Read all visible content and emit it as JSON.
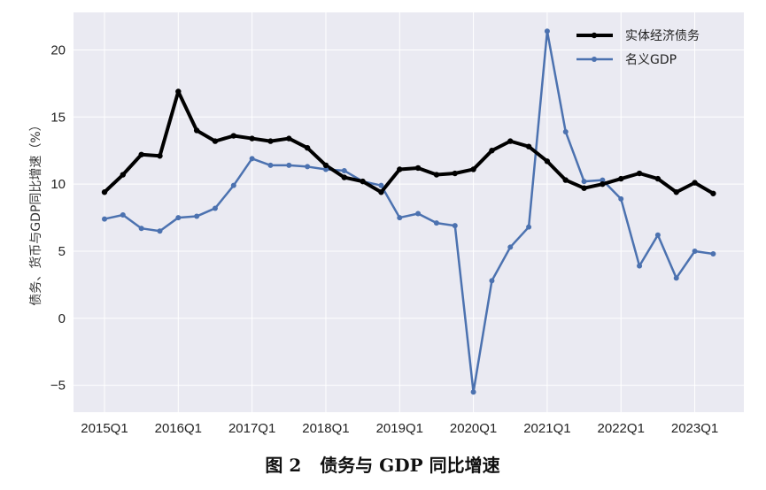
{
  "chart_data": {
    "type": "line",
    "title": "",
    "caption": "图 2   债务与 GDP 同比增速",
    "ylabel": "债务、货币与GDP同比增速（%）",
    "xlabel": "",
    "ylim": [
      -7,
      22.8
    ],
    "yticks": [
      -5,
      0,
      5,
      10,
      15,
      20
    ],
    "ytick_labels": [
      "−5",
      "0",
      "5",
      "10",
      "15",
      "20"
    ],
    "xtick_labels": [
      "2015Q1",
      "2016Q1",
      "2017Q1",
      "2018Q1",
      "2019Q1",
      "2020Q1",
      "2021Q1",
      "2022Q1",
      "2023Q1"
    ],
    "grid": true,
    "legend_position": "top-right",
    "x": [
      "2015Q1",
      "2015Q2",
      "2015Q3",
      "2015Q4",
      "2016Q1",
      "2016Q2",
      "2016Q3",
      "2016Q4",
      "2017Q1",
      "2017Q2",
      "2017Q3",
      "2017Q4",
      "2018Q1",
      "2018Q2",
      "2018Q3",
      "2018Q4",
      "2019Q1",
      "2019Q2",
      "2019Q3",
      "2019Q4",
      "2020Q1",
      "2020Q2",
      "2020Q3",
      "2020Q4",
      "2021Q1",
      "2021Q2",
      "2021Q3",
      "2021Q4",
      "2022Q1",
      "2022Q2",
      "2022Q3",
      "2022Q4",
      "2023Q1",
      "2023Q2"
    ],
    "series": [
      {
        "name": "实体经济债务",
        "color": "#000000",
        "values": [
          9.4,
          10.7,
          12.2,
          12.1,
          16.9,
          14.0,
          13.2,
          13.6,
          13.4,
          13.2,
          13.4,
          12.7,
          11.4,
          10.5,
          10.2,
          9.4,
          11.1,
          11.2,
          10.7,
          10.8,
          11.1,
          12.5,
          13.2,
          12.8,
          11.7,
          10.3,
          9.7,
          10.0,
          10.4,
          10.8,
          10.4,
          9.4,
          10.1,
          9.3
        ]
      },
      {
        "name": "名义GDP",
        "color": "#4c72b0",
        "values": [
          7.4,
          7.7,
          6.7,
          6.5,
          7.5,
          7.6,
          8.2,
          9.9,
          11.9,
          11.4,
          11.4,
          11.3,
          11.1,
          11.0,
          10.2,
          9.9,
          7.5,
          7.8,
          7.1,
          6.9,
          -5.5,
          2.8,
          5.3,
          6.8,
          21.4,
          13.9,
          10.2,
          10.3,
          8.9,
          3.9,
          6.2,
          3.0,
          5.0,
          4.8
        ]
      }
    ]
  }
}
